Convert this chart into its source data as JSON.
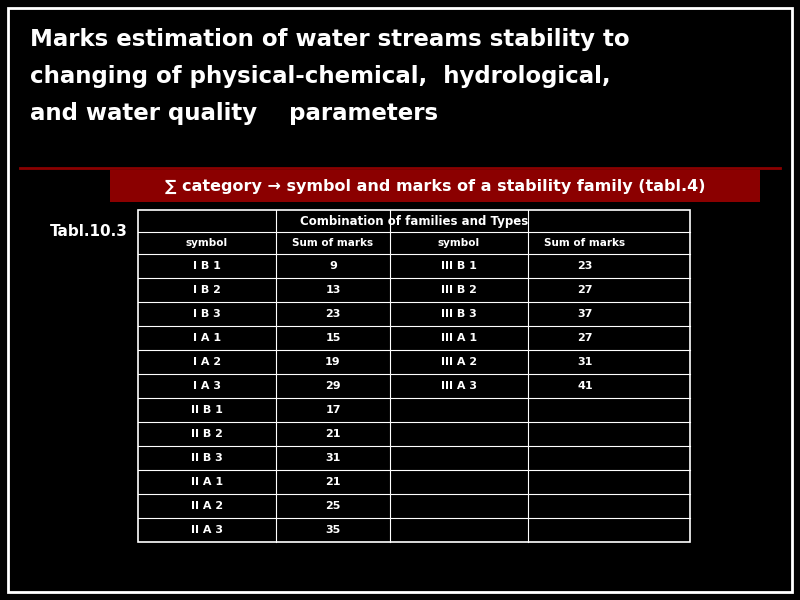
{
  "title_line1": "Marks estimation of water streams stability to",
  "title_line2": "changing of physical-chemical,  hydrological,",
  "title_line3": "and water quality    parameters",
  "subtitle": "∑ category → symbol and marks of a stability family (tabl.4)",
  "tabl_label": "Tabl.10.3",
  "table_header": "Combination of families and Types",
  "col_headers": [
    "symbol",
    "Sum of marks",
    "symbol",
    "Sum of marks"
  ],
  "rows": [
    [
      "I B 1",
      "9",
      "III B 1",
      "23"
    ],
    [
      "I B 2",
      "13",
      "III B 2",
      "27"
    ],
    [
      "I B 3",
      "23",
      "III B 3",
      "37"
    ],
    [
      "I A 1",
      "15",
      "III A 1",
      "27"
    ],
    [
      "I A 2",
      "19",
      "III A 2",
      "31"
    ],
    [
      "I A 3",
      "29",
      "III A 3",
      "41"
    ],
    [
      "II B 1",
      "17",
      "",
      ""
    ],
    [
      "II B 2",
      "21",
      "",
      ""
    ],
    [
      "II B 3",
      "31",
      "",
      ""
    ],
    [
      "II A 1",
      "21",
      "",
      ""
    ],
    [
      "II A 2",
      "25",
      "",
      ""
    ],
    [
      "II A 3",
      "35",
      "",
      ""
    ]
  ],
  "bg_color": "#000000",
  "border_color": "#ffffff",
  "title_color": "#ffffff",
  "subtitle_bg": "#8b0000",
  "subtitle_color": "#ffffff",
  "table_border": "#ffffff",
  "table_text_color": "#ffffff",
  "tabl_label_color": "#ffffff",
  "sep_line_color": "#8b0000"
}
